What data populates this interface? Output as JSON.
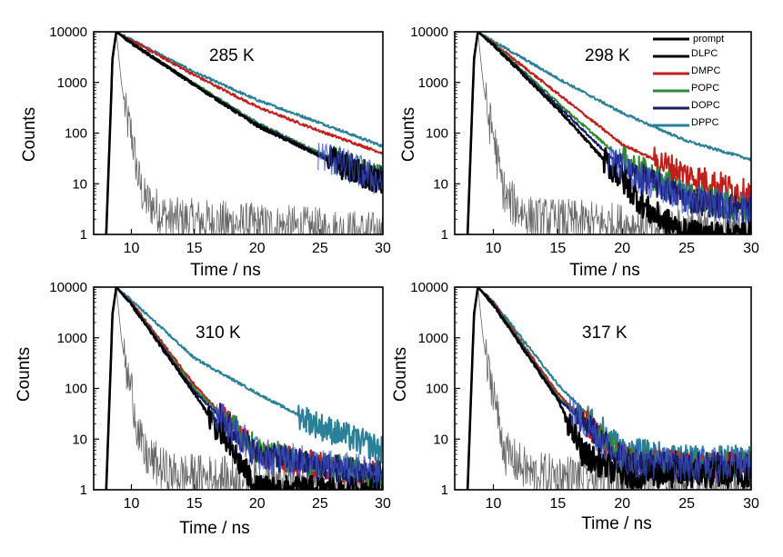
{
  "figure": {
    "x_label": "Time / ns",
    "y_label": "Counts",
    "legend_title": "",
    "series_names": [
      "prompt",
      "DLPC",
      "DMPC",
      "POPC",
      "DOPC",
      "DPPC"
    ],
    "colors": {
      "prompt": "#000000",
      "DLPC": "#000000",
      "DMPC": "#c0201a",
      "POPC": "#2e8b2e",
      "DOPC": "#1c1c6e",
      "DPPC": "#2a7f99",
      "noise_blue": "#3a50c8",
      "prompt_trace": "#555555"
    }
  },
  "chart_data": [
    {
      "type": "line",
      "title": "285 K",
      "xlabel": "Time / ns",
      "ylabel": "Counts",
      "xlim": [
        7,
        30
      ],
      "ylim": [
        1,
        10000
      ],
      "yscale": "log",
      "xticks": [
        10,
        15,
        20,
        25,
        30
      ],
      "yticks": [
        1,
        10,
        100,
        1000,
        10000
      ],
      "legend": false,
      "series": [
        {
          "name": "prompt",
          "x": [
            8,
            8.5,
            8.8,
            9.2,
            9.6,
            10,
            10.5,
            11,
            13,
            30
          ],
          "y": [
            1,
            2000,
            10000,
            1000,
            200,
            100,
            15,
            5,
            2,
            1
          ]
        },
        {
          "name": "DLPC",
          "x": [
            8,
            8.5,
            8.8,
            10,
            15,
            20,
            25,
            30
          ],
          "y": [
            1,
            3000,
            10000,
            6000,
            900,
            140,
            35,
            10
          ]
        },
        {
          "name": "DMPC",
          "x": [
            8,
            8.5,
            8.8,
            10,
            15,
            20,
            25,
            30
          ],
          "y": [
            1,
            3000,
            10000,
            6800,
            1400,
            330,
            110,
            40
          ]
        },
        {
          "name": "POPC",
          "x": [
            8,
            8.5,
            8.8,
            10,
            15,
            20,
            25,
            30
          ],
          "y": [
            1,
            3000,
            10000,
            6000,
            950,
            160,
            40,
            12
          ]
        },
        {
          "name": "DOPC",
          "x": [
            8,
            8.5,
            8.8,
            10,
            15,
            20,
            25,
            30
          ],
          "y": [
            1,
            3000,
            10000,
            6000,
            900,
            150,
            38,
            11
          ]
        },
        {
          "name": "DPPC",
          "x": [
            8,
            8.5,
            8.8,
            10,
            15,
            20,
            25,
            30
          ],
          "y": [
            1,
            3000,
            10000,
            7000,
            1600,
            450,
            160,
            55
          ]
        }
      ]
    },
    {
      "type": "line",
      "title": "298 K",
      "xlabel": "Time / ns",
      "ylabel": "Counts",
      "xlim": [
        7,
        30
      ],
      "ylim": [
        1,
        10000
      ],
      "yscale": "log",
      "xticks": [
        10,
        15,
        20,
        25,
        30
      ],
      "yticks": [
        1,
        10,
        100,
        1000,
        10000
      ],
      "legend": true,
      "series": [
        {
          "name": "prompt",
          "x": [
            8,
            8.5,
            8.8,
            9.2,
            9.6,
            10,
            10.5,
            11,
            13,
            30
          ],
          "y": [
            1,
            2000,
            10000,
            1000,
            200,
            100,
            15,
            5,
            2,
            1
          ]
        },
        {
          "name": "DLPC",
          "x": [
            8,
            8.5,
            8.8,
            10,
            15,
            20,
            22,
            25,
            30
          ],
          "y": [
            1,
            3000,
            10000,
            5500,
            300,
            12,
            3,
            1,
            1
          ]
        },
        {
          "name": "DMPC",
          "x": [
            8,
            8.5,
            8.8,
            10,
            15,
            20,
            25,
            30
          ],
          "y": [
            1,
            3000,
            10000,
            6000,
            600,
            60,
            15,
            6
          ]
        },
        {
          "name": "POPC",
          "x": [
            8,
            8.5,
            8.8,
            10,
            15,
            20,
            25,
            30
          ],
          "y": [
            1,
            3000,
            10000,
            5800,
            400,
            30,
            6,
            3
          ]
        },
        {
          "name": "DOPC",
          "x": [
            8,
            8.5,
            8.8,
            10,
            15,
            20,
            25,
            30
          ],
          "y": [
            1,
            3000,
            10000,
            5600,
            350,
            20,
            5,
            3
          ]
        },
        {
          "name": "DPPC",
          "x": [
            8,
            8.5,
            8.8,
            10,
            15,
            20,
            25,
            30
          ],
          "y": [
            1,
            3000,
            10000,
            6500,
            1200,
            250,
            70,
            30
          ]
        }
      ]
    },
    {
      "type": "line",
      "title": "310 K",
      "xlabel": "Time / ns",
      "ylabel": "Counts",
      "xlim": [
        7,
        30
      ],
      "ylim": [
        1,
        10000
      ],
      "yscale": "log",
      "xticks": [
        10,
        15,
        20,
        25,
        30
      ],
      "yticks": [
        1,
        10,
        100,
        1000,
        10000
      ],
      "legend": false,
      "series": [
        {
          "name": "prompt",
          "x": [
            8,
            8.5,
            8.8,
            9.2,
            9.6,
            10,
            10.5,
            11,
            13,
            30
          ],
          "y": [
            1,
            2000,
            10000,
            1000,
            200,
            100,
            15,
            5,
            2,
            1
          ]
        },
        {
          "name": "DLPC",
          "x": [
            8,
            8.5,
            8.8,
            10,
            15,
            18,
            20,
            30
          ],
          "y": [
            1,
            3000,
            10000,
            4500,
            80,
            6,
            1,
            1
          ]
        },
        {
          "name": "DMPC",
          "x": [
            8,
            8.5,
            8.8,
            10,
            15,
            20,
            25,
            30
          ],
          "y": [
            1,
            3000,
            10000,
            5000,
            120,
            5,
            3,
            2
          ]
        },
        {
          "name": "POPC",
          "x": [
            8,
            8.5,
            8.8,
            10,
            15,
            20,
            25,
            30
          ],
          "y": [
            1,
            3000,
            10000,
            4800,
            100,
            6,
            3,
            2
          ]
        },
        {
          "name": "DOPC",
          "x": [
            8,
            8.5,
            8.8,
            10,
            15,
            20,
            25,
            30
          ],
          "y": [
            1,
            3000,
            10000,
            4700,
            90,
            5,
            3,
            2
          ]
        },
        {
          "name": "DPPC",
          "x": [
            8,
            8.5,
            8.8,
            10,
            15,
            20,
            25,
            30
          ],
          "y": [
            1,
            3000,
            10000,
            5500,
            400,
            80,
            18,
            6
          ]
        }
      ]
    },
    {
      "type": "line",
      "title": "317 K",
      "xlabel": "Time / ns",
      "ylabel": "Counts",
      "xlim": [
        7,
        30
      ],
      "ylim": [
        1,
        10000
      ],
      "yscale": "log",
      "xticks": [
        10,
        15,
        20,
        25,
        30
      ],
      "yticks": [
        1,
        10,
        100,
        1000,
        10000
      ],
      "legend": false,
      "series": [
        {
          "name": "prompt",
          "x": [
            8,
            8.5,
            8.8,
            9.2,
            9.6,
            10,
            10.5,
            11,
            13,
            30
          ],
          "y": [
            1,
            2000,
            10000,
            1000,
            200,
            100,
            15,
            5,
            2,
            1
          ]
        },
        {
          "name": "DLPC",
          "x": [
            8,
            8.5,
            8.8,
            10,
            15,
            17,
            20,
            30
          ],
          "y": [
            1,
            3000,
            10000,
            4500,
            60,
            5,
            2,
            2
          ]
        },
        {
          "name": "DMPC",
          "x": [
            8,
            8.5,
            8.8,
            10,
            15,
            20,
            25,
            30
          ],
          "y": [
            1,
            3000,
            10000,
            5000,
            80,
            4,
            3,
            3
          ]
        },
        {
          "name": "POPC",
          "x": [
            8,
            8.5,
            8.8,
            10,
            15,
            20,
            25,
            30
          ],
          "y": [
            1,
            3000,
            10000,
            4800,
            70,
            4,
            3,
            3
          ]
        },
        {
          "name": "DOPC",
          "x": [
            8,
            8.5,
            8.8,
            10,
            15,
            20,
            25,
            30
          ],
          "y": [
            1,
            3000,
            10000,
            4700,
            65,
            4,
            3,
            3
          ]
        },
        {
          "name": "DPPC",
          "x": [
            8,
            8.5,
            8.8,
            10,
            15,
            20,
            25,
            30
          ],
          "y": [
            1,
            3000,
            10000,
            5200,
            120,
            6,
            4,
            4
          ]
        }
      ]
    }
  ]
}
